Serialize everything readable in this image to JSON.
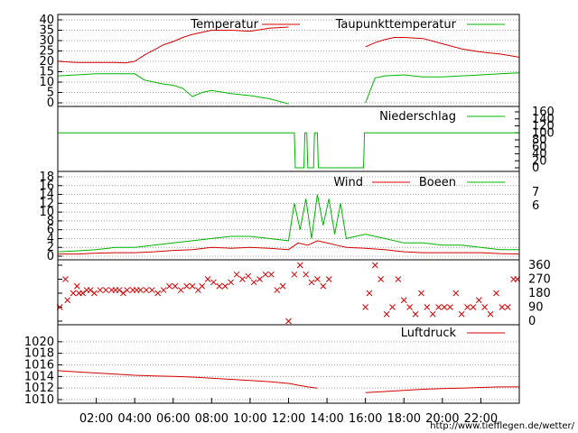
{
  "source_url": "http://www.tiefflegen.de/wetter/",
  "x_ticks": [
    "02:00",
    "04:00",
    "06:00",
    "08:00",
    "10:00",
    "12:00",
    "14:00",
    "16:00",
    "18:00",
    "20:00",
    "22:00"
  ],
  "colors": {
    "red": "#d40000",
    "green": "#00b400",
    "grid": "#a0a0a0",
    "frame": "#000000"
  },
  "chart_data": [
    {
      "type": "line",
      "x_unit": "hours",
      "ylim": [
        0,
        40
      ],
      "yticks": [
        "0",
        "5",
        "10",
        "15",
        "20",
        "25",
        "30",
        "35",
        "40"
      ],
      "series": [
        {
          "name": "Temperatur",
          "color": "#d40000",
          "x": [
            0,
            1,
            2,
            3,
            3.5,
            4,
            4.5,
            5,
            5.5,
            6,
            6.5,
            7,
            8,
            9,
            10,
            11,
            12,
            12.5,
            13,
            14,
            15,
            16,
            16.5,
            17,
            17.5,
            18,
            19,
            20,
            21,
            22,
            23,
            24
          ],
          "y": [
            20,
            19.5,
            19.5,
            19.5,
            19.2,
            20,
            23,
            25.5,
            28,
            29.5,
            31.5,
            33,
            35,
            35,
            34.5,
            36,
            36.5,
            null,
            null,
            null,
            null,
            27,
            29,
            30.5,
            31.5,
            31.5,
            31,
            28.5,
            26,
            24.5,
            23.5,
            22
          ]
        },
        {
          "name": "Taupunkttemperatur",
          "color": "#00b400",
          "x": [
            0,
            1,
            2,
            3,
            4,
            4.5,
            5,
            5.5,
            6,
            6.5,
            7,
            7.5,
            8,
            9,
            10,
            11,
            12,
            12.5,
            13,
            14,
            15,
            16,
            16.5,
            17,
            18,
            19,
            20,
            21,
            22,
            23,
            24
          ],
          "y": [
            13,
            13.5,
            14,
            14,
            14,
            11,
            10,
            9,
            8.5,
            7,
            3,
            5,
            6,
            4.5,
            3.5,
            2,
            -0.5,
            null,
            null,
            null,
            null,
            0,
            12,
            13,
            13.5,
            12.5,
            12.5,
            13,
            13.5,
            14,
            14.5
          ]
        }
      ]
    },
    {
      "type": "line",
      "x_unit": "hours",
      "ylim": [
        0,
        160
      ],
      "yticks": [
        "0",
        "20",
        "40",
        "60",
        "80",
        "100",
        "120",
        "140",
        "160"
      ],
      "series": [
        {
          "name": "Niederschlag",
          "color": "#00b400",
          "x": [
            0,
            12.3,
            12.35,
            12.8,
            12.85,
            12.95,
            13.0,
            13.3,
            13.35,
            13.5,
            13.55,
            14.4,
            14.45,
            15.9,
            15.95,
            24
          ],
          "y": [
            100,
            100,
            0,
            0,
            100,
            100,
            0,
            0,
            100,
            100,
            0,
            0,
            0,
            0,
            100,
            100
          ]
        }
      ]
    },
    {
      "type": "line",
      "x_unit": "hours",
      "ylim": [
        0,
        18
      ],
      "yticks": [
        "0",
        "2",
        "4",
        "6",
        "8",
        "10",
        "12",
        "14",
        "16",
        "18"
      ],
      "right_ticks": [
        "7",
        "6"
      ],
      "series": [
        {
          "name": "Wind",
          "color": "#d40000",
          "x": [
            0,
            1,
            2,
            3,
            4,
            5,
            6,
            7,
            8,
            9,
            10,
            11,
            12,
            12.5,
            13,
            13.5,
            14,
            14.5,
            15,
            16,
            17,
            18,
            19,
            20,
            21,
            22,
            23,
            24
          ],
          "y": [
            0.5,
            0.5,
            0.7,
            0.8,
            0.8,
            1.0,
            1.3,
            1.5,
            2.0,
            1.8,
            2.0,
            1.8,
            1.5,
            3.0,
            2.5,
            3.5,
            3.0,
            2.5,
            2.0,
            1.8,
            1.5,
            1.0,
            0.8,
            0.8,
            0.8,
            0.8,
            0.6,
            0.5
          ]
        },
        {
          "name": "Boeen",
          "color": "#00b400",
          "x": [
            0,
            1,
            2,
            3,
            4,
            5,
            6,
            7,
            8,
            9,
            10,
            11,
            12,
            12.3,
            12.6,
            12.9,
            13.2,
            13.5,
            13.8,
            14.1,
            14.4,
            14.7,
            15,
            15.5,
            16,
            17,
            18,
            19,
            20,
            21,
            22,
            23,
            24
          ],
          "y": [
            1.0,
            1.2,
            1.5,
            2.0,
            2.0,
            2.5,
            3.0,
            3.5,
            4.0,
            4.5,
            4.5,
            4.0,
            3.5,
            12,
            6,
            13,
            4,
            14,
            7,
            13,
            5,
            12,
            4,
            4.5,
            5,
            4,
            3,
            3,
            2.5,
            2.5,
            2,
            1.5,
            1.5
          ]
        }
      ]
    },
    {
      "type": "scatter",
      "x_unit": "hours",
      "ylim": [
        0,
        360
      ],
      "yticks": [
        "0",
        "90",
        "180",
        "270",
        "360"
      ],
      "x": [
        0.1,
        0.4,
        0.5,
        0.8,
        1.0,
        1.1,
        1.3,
        1.5,
        1.7,
        1.9,
        2.2,
        2.5,
        2.8,
        3.0,
        3.2,
        3.4,
        3.6,
        3.9,
        4.1,
        4.3,
        4.6,
        4.9,
        5.2,
        5.5,
        5.8,
        6.1,
        6.4,
        6.7,
        7.0,
        7.3,
        7.5,
        7.8,
        8.1,
        8.4,
        8.7,
        9.0,
        9.3,
        9.6,
        9.9,
        10.2,
        10.5,
        10.8,
        11.1,
        11.4,
        11.7,
        12.0,
        12.3,
        12.6,
        12.9,
        13.2,
        13.5,
        13.8,
        14.1,
        16.0,
        16.2,
        16.5,
        16.8,
        17.1,
        17.4,
        17.7,
        18.0,
        18.3,
        18.6,
        18.9,
        19.2,
        19.5,
        19.8,
        20.1,
        20.4,
        20.7,
        21.0,
        21.3,
        21.6,
        21.9,
        22.2,
        22.5,
        22.8,
        23.1,
        23.4,
        23.7,
        23.9
      ],
      "y": [
        90,
        270,
        135,
        180,
        225,
        180,
        180,
        200,
        200,
        180,
        200,
        200,
        200,
        200,
        200,
        180,
        200,
        200,
        200,
        200,
        200,
        200,
        180,
        200,
        225,
        225,
        200,
        225,
        225,
        200,
        225,
        270,
        250,
        225,
        225,
        250,
        300,
        270,
        290,
        250,
        270,
        300,
        300,
        200,
        225,
        0,
        300,
        360,
        300,
        250,
        270,
        225,
        270,
        90,
        180,
        360,
        270,
        45,
        90,
        270,
        135,
        90,
        45,
        180,
        90,
        45,
        90,
        90,
        90,
        180,
        45,
        90,
        90,
        135,
        90,
        45,
        180,
        90,
        90,
        270,
        270
      ]
    },
    {
      "type": "line",
      "x_unit": "hours",
      "ylim": [
        1010,
        1022
      ],
      "yticks": [
        "1010",
        "1012",
        "1014",
        "1016",
        "1018",
        "1020"
      ],
      "series": [
        {
          "name": "Luftdruck",
          "color": "#d40000",
          "x": [
            0,
            1,
            2,
            3,
            4,
            5,
            6,
            7,
            8,
            9,
            10,
            11,
            12,
            12.5,
            13,
            13.5,
            null,
            16,
            17,
            18,
            19,
            20,
            21,
            22,
            23,
            24
          ],
          "y": [
            1015,
            1014.8,
            1014.6,
            1014.4,
            1014.2,
            1014.1,
            1014.0,
            1013.9,
            1013.7,
            1013.5,
            1013.3,
            1013.1,
            1012.8,
            1012.5,
            1012.2,
            1012.0,
            null,
            1011.2,
            1011.4,
            1011.6,
            1011.8,
            1011.9,
            1012.0,
            1012.1,
            1012.2,
            1012.2
          ]
        }
      ]
    }
  ]
}
